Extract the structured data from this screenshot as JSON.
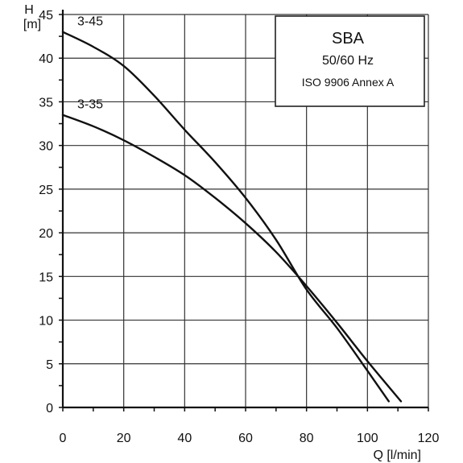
{
  "chart_data": {
    "type": "line",
    "title": "SBA",
    "subtitle_lines": [
      "50/60  Hz",
      "ISO 9906 Annex A"
    ],
    "ylabel_line1": "H",
    "ylabel_line2": "[m]",
    "xlabel": "Q [l/min]",
    "xlim": [
      0,
      120
    ],
    "ylim": [
      0,
      45
    ],
    "x_ticks": [
      0,
      20,
      40,
      60,
      80,
      100,
      120
    ],
    "y_ticks": [
      0,
      5,
      10,
      15,
      20,
      25,
      30,
      35,
      40,
      45
    ],
    "grid": true,
    "series": [
      {
        "name": "3-45",
        "x": [
          0,
          10,
          20,
          30,
          40,
          50,
          60,
          70,
          80,
          90,
          100,
          107
        ],
        "y": [
          43,
          41.3,
          39.1,
          35.7,
          31.8,
          28.1,
          24,
          19.2,
          13.5,
          9.1,
          4.2,
          0.7
        ]
      },
      {
        "name": "3-35",
        "x": [
          0,
          10,
          20,
          30,
          40,
          50,
          60,
          70,
          80,
          90,
          100,
          111
        ],
        "y": [
          33.5,
          32.2,
          30.6,
          28.7,
          26.6,
          24,
          21.1,
          17.8,
          13.9,
          9.7,
          5.3,
          0.7
        ]
      }
    ]
  }
}
